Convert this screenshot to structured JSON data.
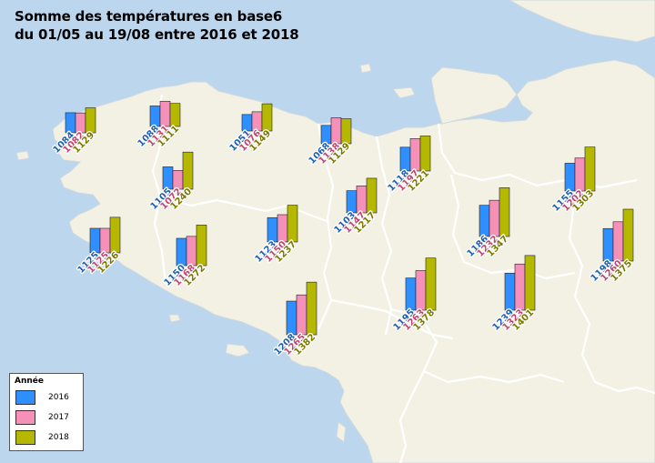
{
  "title": {
    "line1": "Somme des températures en base6",
    "line2": "du 01/05 au 19/08 entre 2016 et 2018"
  },
  "legend": {
    "title": "Année",
    "items": [
      {
        "label": "2016",
        "color": "#2f8fff"
      },
      {
        "label": "2017",
        "color": "#f590b8"
      },
      {
        "label": "2018",
        "color": "#b5b800"
      }
    ]
  },
  "map_colors": {
    "sea": "#bcd6ee",
    "land": "#f2f1e4",
    "border": "#ffffff"
  },
  "chart_data": {
    "type": "bar",
    "series_names": [
      "2016",
      "2017",
      "2018"
    ],
    "value_label_colors": [
      "#1f5fb0",
      "#c0456e",
      "#7b7a00"
    ],
    "stations": [
      {
        "id": "s1",
        "values": [
          1084,
          1082,
          1129
        ]
      },
      {
        "id": "s2",
        "values": [
          1088,
          1131,
          1111
        ]
      },
      {
        "id": "s3",
        "values": [
          1051,
          1076,
          1149
        ]
      },
      {
        "id": "s4",
        "values": [
          1068,
          1138,
          1129
        ]
      },
      {
        "id": "s5",
        "values": [
          1105,
          1072,
          1240
        ]
      },
      {
        "id": "s6",
        "values": [
          1118,
          1197,
          1221
        ]
      },
      {
        "id": "s7",
        "values": [
          1155,
          1202,
          1303
        ]
      },
      {
        "id": "s8",
        "values": [
          1103,
          1147,
          1217
        ]
      },
      {
        "id": "s9",
        "values": [
          1125,
          1125,
          1226
        ]
      },
      {
        "id": "s10",
        "values": [
          1150,
          1168,
          1272
        ]
      },
      {
        "id": "s11",
        "values": [
          1123,
          1150,
          1237
        ]
      },
      {
        "id": "s12",
        "values": [
          1186,
          1232,
          1347
        ]
      },
      {
        "id": "s13",
        "values": [
          1198,
          1260,
          1375
        ]
      },
      {
        "id": "s14",
        "values": [
          1208,
          1265,
          1382
        ]
      },
      {
        "id": "s15",
        "values": [
          1195,
          1263,
          1378
        ]
      },
      {
        "id": "s16",
        "values": [
          1239,
          1323,
          1401
        ]
      }
    ]
  }
}
